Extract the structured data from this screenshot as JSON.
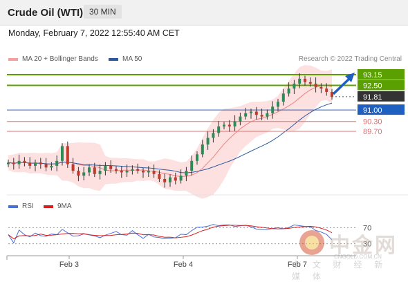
{
  "header": {
    "title": "Crude Oil (WTI)",
    "timeframe": "30 MIN"
  },
  "timestamp": "Monday, February 7, 2022 12:55:40 AM CET",
  "legend": {
    "ma20_label": "MA 20 + Bollinger Bands",
    "ma50_label": "MA 50",
    "credit": "Research © 2022 Trading Central"
  },
  "rsi_legend": {
    "rsi_label": "RSI",
    "ma_label": "9MA"
  },
  "colors": {
    "up_candle": "#2e8b57",
    "down_candle": "#c0392b",
    "ma20": "#f08080",
    "bollinger_fill": "#fde0e0",
    "ma50": "#2c5aa0",
    "resistance": "#5aa000",
    "support_blue": "#1f5fbf",
    "support_red": "#e07070",
    "current": "#333333",
    "rsi": "#4a6fd8",
    "rsi_ma": "#d42020"
  },
  "watermark": {
    "cn": "中金网",
    "url": "CNGOLD.COM.CN",
    "sub": "中 文 财 经 新 媒 体"
  },
  "chart_data": {
    "type": "candlestick",
    "title": "Crude Oil (WTI)",
    "timeframe": "30 MIN",
    "x_ticks": [
      "Feb 3",
      "Feb 4",
      "Feb 7"
    ],
    "price_levels": [
      {
        "label": "93.15",
        "value": 93.15,
        "kind": "resistance"
      },
      {
        "label": "92.50",
        "value": 92.5,
        "kind": "resistance"
      },
      {
        "label": "91.81",
        "value": 91.81,
        "kind": "current"
      },
      {
        "label": "91.00",
        "value": 91.0,
        "kind": "support"
      },
      {
        "label": "90.30",
        "value": 90.3,
        "kind": "support"
      },
      {
        "label": "89.70",
        "value": 89.7,
        "kind": "support"
      }
    ],
    "rsi": {
      "levels": [
        {
          "label": "70",
          "value": 70
        },
        {
          "label": "30",
          "value": 30
        }
      ]
    },
    "close_series": [
      87.8,
      87.7,
      87.9,
      87.8,
      87.6,
      87.8,
      87.7,
      87.5,
      87.6,
      87.9,
      88.8,
      87.7,
      87.3,
      87.0,
      87.2,
      87.5,
      87.1,
      87.3,
      87.6,
      87.4,
      87.3,
      87.2,
      87.3,
      87.4,
      87.3,
      87.2,
      87.3,
      87.1,
      86.8,
      86.6,
      86.9,
      86.7,
      87.0,
      87.3,
      87.9,
      88.3,
      88.9,
      89.3,
      89.6,
      90.0,
      90.1,
      90.0,
      90.3,
      90.6,
      90.8,
      90.9,
      90.7,
      90.6,
      90.8,
      91.2,
      91.5,
      92.0,
      92.3,
      92.6,
      92.9,
      92.7,
      92.6,
      92.4,
      92.3,
      92.1,
      91.8
    ]
  }
}
